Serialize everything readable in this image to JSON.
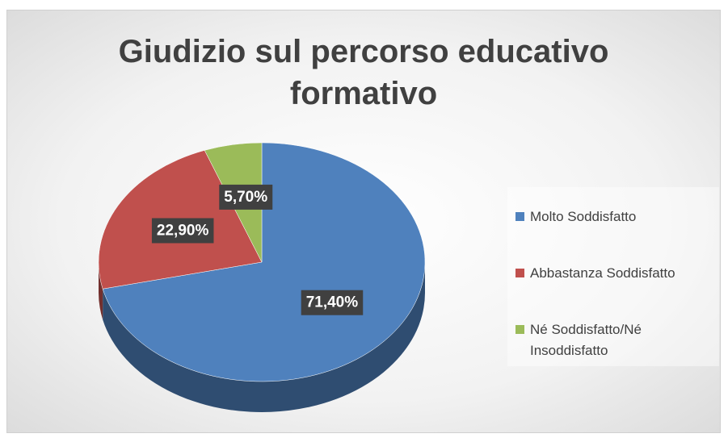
{
  "chart_data": {
    "type": "pie",
    "title": "Giudizio sul percorso educativo formativo",
    "categories": [
      "Molto Soddisfatto",
      "Abbastanza Soddisfatto",
      "Né Soddisfatto/Né Insoddisfatto"
    ],
    "values": [
      71.4,
      22.9,
      5.7
    ],
    "value_labels": [
      "71,40%",
      "22,90%",
      "5,70%"
    ],
    "colors": [
      "#4f81bd",
      "#c0504d",
      "#9bbb59"
    ],
    "legend": "right"
  }
}
